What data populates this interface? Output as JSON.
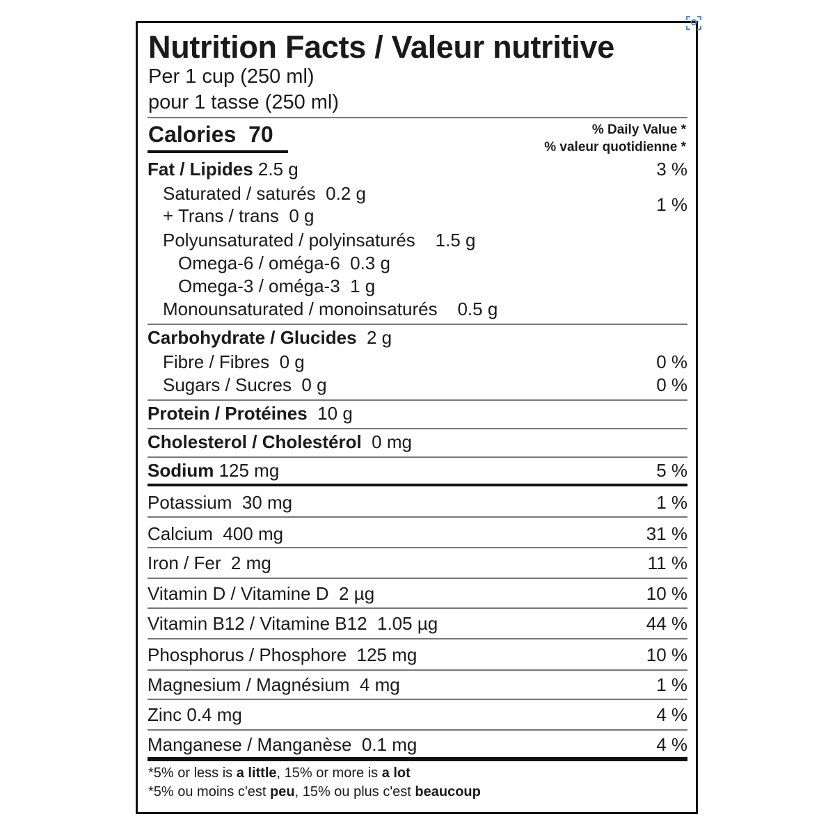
{
  "label": {
    "title": "Nutrition Facts / Valeur nutritive",
    "serving_en": "Per 1 cup (250 ml)",
    "serving_fr": "pour 1 tasse (250 ml)",
    "calories_label": "Calories",
    "calories_value": "70",
    "dv_en": "% Daily Value *",
    "dv_fr": "% valeur quotidienne *",
    "rows": [
      {
        "bold": "Fat / Lipides",
        "rest": " 2.5 g",
        "dv": "3 %",
        "indent": 0
      },
      {
        "bold": "",
        "rest": "Saturated / saturés  0.2 g",
        "dv": "",
        "indent": 1
      },
      {
        "bold": "",
        "rest": "+ Trans / trans  0 g",
        "dv": "",
        "indent": 1
      },
      {
        "bold": "",
        "rest": "Polyunsaturated / polyinsaturés    1.5 g",
        "dv": "",
        "indent": 1
      },
      {
        "bold": "",
        "rest": "Omega-6 / oméga-6  0.3 g",
        "dv": "",
        "indent": 2
      },
      {
        "bold": "",
        "rest": "Omega-3 / oméga-3   1 g",
        "dv": "",
        "indent": 2
      },
      {
        "bold": "",
        "rest": "Monounsaturated / monoinsaturés    0.5 g",
        "dv": "",
        "indent": 1
      },
      {
        "bold": "Carbohydrate / Glucides",
        "rest": "  2 g",
        "dv": "",
        "indent": 0
      },
      {
        "bold": "",
        "rest": "Fibre / Fibres  0 g",
        "dv": "0 %",
        "indent": 1
      },
      {
        "bold": "",
        "rest": "Sugars / Sucres  0 g",
        "dv": "0 %",
        "indent": 1
      },
      {
        "bold": "Protein / Protéines",
        "rest": "  10 g",
        "dv": "",
        "indent": 0
      },
      {
        "bold": "Cholesterol / Cholestérol",
        "rest": "  0 mg",
        "dv": "",
        "indent": 0
      },
      {
        "bold": "Sodium",
        "rest": " 125 mg",
        "dv": "5 %",
        "indent": 0
      },
      {
        "bold": "",
        "rest": "Potassium  30 mg",
        "dv": "1 %",
        "indent": 0
      },
      {
        "bold": "",
        "rest": "Calcium  400 mg",
        "dv": "31 %",
        "indent": 0
      },
      {
        "bold": "",
        "rest": "Iron / Fer  2 mg",
        "dv": "11 %",
        "indent": 0
      },
      {
        "bold": "",
        "rest": "Vitamin D / Vitamine D   2 µg",
        "dv": "10 %",
        "indent": 0
      },
      {
        "bold": "",
        "rest": "Vitamin B12 / Vitamine B12   1.05 µg",
        "dv": "44 %",
        "indent": 0
      },
      {
        "bold": "",
        "rest": "Phosphorus / Phosphore   125 mg",
        "dv": "10 %",
        "indent": 0
      },
      {
        "bold": "",
        "rest": "Magnesium / Magnésium   4 mg",
        "dv": "1 %",
        "indent": 0
      },
      {
        "bold": "",
        "rest": "Zinc 0.4 mg",
        "dv": "4 %",
        "indent": 0
      },
      {
        "bold": "",
        "rest": "Manganese / Manganèse   0.1 mg",
        "dv": "4 %",
        "indent": 0
      }
    ],
    "trans_combined_dv": "1 %",
    "footnote_en": [
      "*5% or less is ",
      "a little",
      ", 15% or more is ",
      "a lot"
    ],
    "footnote_fr": [
      "*5% ou moins c'est ",
      "peu",
      ", 15% ou plus c'est ",
      "beaucoup"
    ]
  },
  "icons": {
    "corner": "scan-icon"
  },
  "colors": {
    "text": "#1a1a1a",
    "rule": "#777777",
    "icon": "#4a8fd6"
  }
}
